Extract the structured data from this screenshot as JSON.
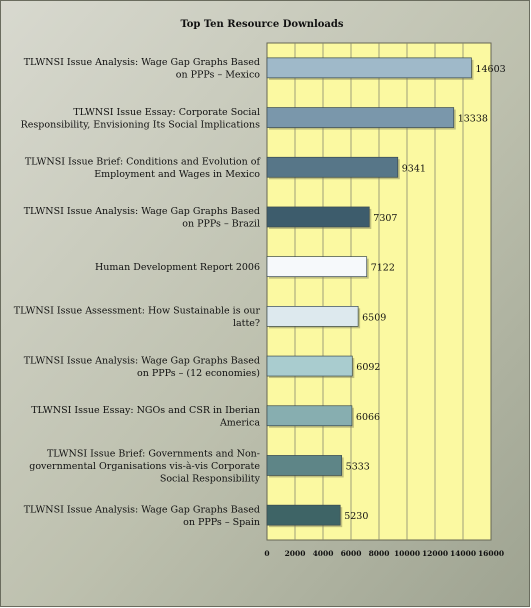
{
  "chart_data": {
    "type": "bar",
    "orientation": "horizontal",
    "title": "Top Ten Resource Downloads",
    "xlabel": "",
    "ylabel": "",
    "xlim": [
      0,
      16000
    ],
    "x_ticks": [
      0,
      2000,
      4000,
      6000,
      8000,
      10000,
      12000,
      14000,
      16000
    ],
    "grid": true,
    "legend": "none",
    "categories": [
      [
        "TLWNSI Issue Analysis:  Wage Gap Graphs Based",
        "on PPPs – Mexico"
      ],
      [
        "TLWNSI Issue Essay:  Corporate Social",
        "Responsibility, Envisioning Its Social Implications"
      ],
      [
        "TLWNSI Issue Brief:  Conditions and Evolution of",
        "Employment and Wages in Mexico"
      ],
      [
        "TLWNSI Issue Analysis:  Wage Gap Graphs Based",
        "on PPPs – Brazil"
      ],
      [
        "Human Development Report 2006"
      ],
      [
        "TLWNSI Issue Assessment:  How Sustainable is our",
        "latte?"
      ],
      [
        "TLWNSI Issue Analysis:  Wage Gap Graphs Based",
        "on PPPs – (12 economies)"
      ],
      [
        "TLWNSI Issue Essay:  NGOs and CSR in Iberian",
        "America"
      ],
      [
        "TLWNSI Issue Brief:  Governments and Non-",
        "governmental Organisations vis-à-vis Corporate",
        "Social Responsibility"
      ],
      [
        "TLWNSI Issue Analysis:  Wage Gap Graphs Based",
        "on PPPs – Spain"
      ]
    ],
    "values": [
      14603,
      13338,
      9341,
      7307,
      7122,
      6509,
      6092,
      6066,
      5333,
      5230
    ],
    "bar_colors": [
      "#9fb9c9",
      "#7a97ab",
      "#577688",
      "#3d5c6c",
      "#f6f9fb",
      "#dde9ee",
      "#a9cccf",
      "#87aeb0",
      "#5e8587",
      "#3e6466"
    ],
    "colors": {
      "page_background": "#b8bba8",
      "plot_background": "#fbf9a1",
      "gridline": "#888870"
    }
  }
}
